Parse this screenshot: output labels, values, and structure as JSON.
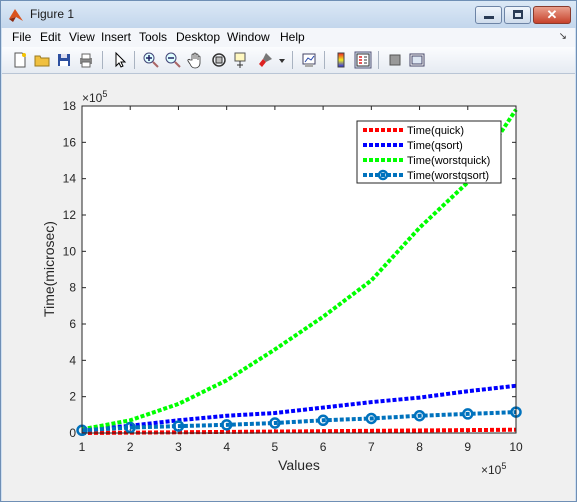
{
  "window": {
    "title": "Figure 1",
    "minimize_icon": "minimize-icon",
    "maximize_icon": "maximize-icon",
    "close_icon": "close-icon",
    "close_glyph": "✕"
  },
  "menu": {
    "items": [
      "File",
      "Edit",
      "View",
      "Insert",
      "Tools",
      "Desktop",
      "Window",
      "Help"
    ],
    "overflow_glyph": "↘"
  },
  "toolbar": {
    "icons": [
      "new-figure-icon",
      "open-file-icon",
      "save-icon",
      "print-icon",
      "pointer-icon",
      "zoom-in-icon",
      "zoom-out-icon",
      "pan-icon",
      "rotate-3d-icon",
      "data-cursor-icon",
      "brush-icon",
      "dropdown-arrow-icon",
      "link-plot-icon",
      "insert-colorbar-icon",
      "insert-legend-icon",
      "hide-plot-tools-icon",
      "show-plot-tools-icon"
    ]
  },
  "chart_data": {
    "type": "line",
    "title": "",
    "xlabel": "Values",
    "ylabel": "Time(microsec)",
    "x_exponent_label": "×10",
    "x_exponent": "5",
    "y_exponent_label": "×10",
    "y_exponent": "5",
    "xlim": [
      1,
      10
    ],
    "ylim": [
      0,
      18
    ],
    "x_ticks": [
      "1",
      "2",
      "3",
      "4",
      "5",
      "6",
      "7",
      "8",
      "9",
      "10"
    ],
    "y_ticks": [
      "0",
      "2",
      "4",
      "6",
      "8",
      "10",
      "12",
      "14",
      "16",
      "18"
    ],
    "grid": false,
    "legend_position": "top-right",
    "x": [
      1,
      2,
      3,
      4,
      5,
      6,
      7,
      8,
      9,
      10
    ],
    "series": [
      {
        "name": "Time(quick)",
        "color": "#ff0000",
        "style": "dotted",
        "marker": "none",
        "values": [
          0.0,
          0.02,
          0.04,
          0.06,
          0.08,
          0.1,
          0.12,
          0.14,
          0.16,
          0.18
        ]
      },
      {
        "name": "Time(qsort)",
        "color": "#0000ff",
        "style": "dotted",
        "marker": "none",
        "values": [
          0.15,
          0.4,
          0.7,
          0.95,
          1.1,
          1.4,
          1.7,
          1.95,
          2.3,
          2.6
        ]
      },
      {
        "name": "Time(worstquick)",
        "color": "#00ff00",
        "style": "dotted",
        "marker": "none",
        "values": [
          0.2,
          0.7,
          1.6,
          2.9,
          4.6,
          6.4,
          8.4,
          11.3,
          13.8,
          17.8
        ]
      },
      {
        "name": "Time(worstqsort)",
        "color": "#0072bd",
        "style": "dotted",
        "marker": "circle",
        "values": [
          0.15,
          0.3,
          0.38,
          0.45,
          0.55,
          0.7,
          0.8,
          0.95,
          1.05,
          1.15
        ]
      }
    ]
  }
}
